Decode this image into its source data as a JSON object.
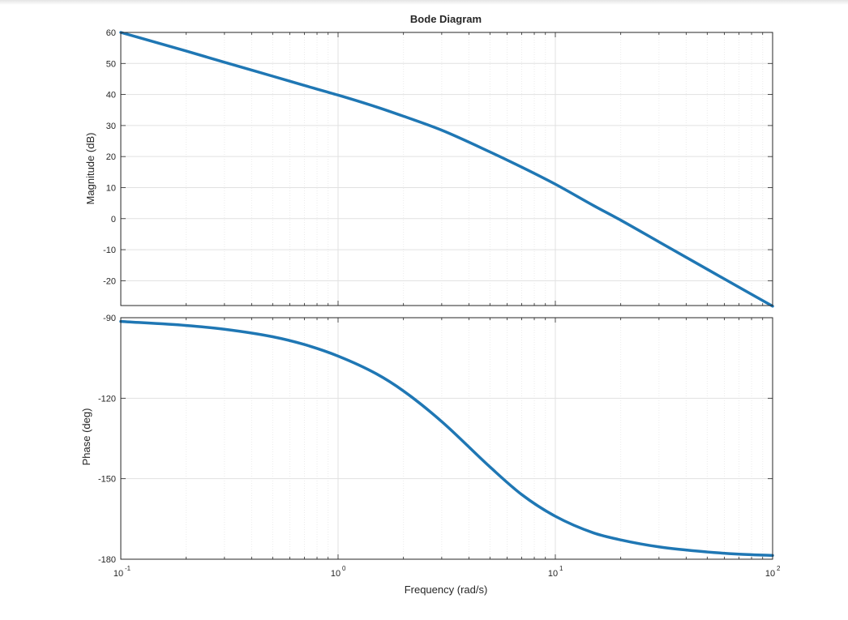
{
  "chart_data": {
    "type": "line",
    "title": "Bode Diagram",
    "xlabel": "Frequency  (rad/s)",
    "xscale": "log",
    "xlim": [
      0.1,
      100
    ],
    "x_ticks": [
      {
        "base": "10",
        "exp": "-1"
      },
      {
        "base": "10",
        "exp": "0"
      },
      {
        "base": "10",
        "exp": "1"
      },
      {
        "base": "10",
        "exp": "2"
      }
    ],
    "grid": true,
    "line_color": "#1f77b4",
    "plots": [
      {
        "name": "magnitude",
        "ylabel": "Magnitude (dB)",
        "ylim": [
          -28,
          60
        ],
        "yticks": [
          60,
          50,
          40,
          30,
          20,
          10,
          0,
          -10,
          -20
        ],
        "x": [
          0.1,
          0.2,
          0.3,
          0.5,
          0.7,
          1,
          1.5,
          2,
          3,
          5,
          7,
          10,
          15,
          20,
          30,
          50,
          70,
          100
        ],
        "y": [
          60,
          54,
          50.4,
          45.9,
          42.9,
          39.8,
          36,
          33,
          28.5,
          21.5,
          16.6,
          11.1,
          4.2,
          -0.5,
          -7.5,
          -16.3,
          -22.1,
          -28.2
        ]
      },
      {
        "name": "phase",
        "ylabel": "Phase (deg)",
        "ylim": [
          -180,
          -90
        ],
        "yticks": [
          -90,
          -120,
          -150,
          -180
        ],
        "x": [
          0.1,
          0.2,
          0.3,
          0.5,
          0.7,
          1,
          1.5,
          2,
          3,
          5,
          7,
          10,
          15,
          20,
          30,
          50,
          70,
          100
        ],
        "y": [
          -91.4,
          -92.9,
          -94.3,
          -97.1,
          -100,
          -104.3,
          -110.9,
          -117.3,
          -128.7,
          -145.6,
          -155.9,
          -164,
          -170.2,
          -172.8,
          -175.4,
          -177.3,
          -178.1,
          -178.6
        ]
      }
    ]
  }
}
